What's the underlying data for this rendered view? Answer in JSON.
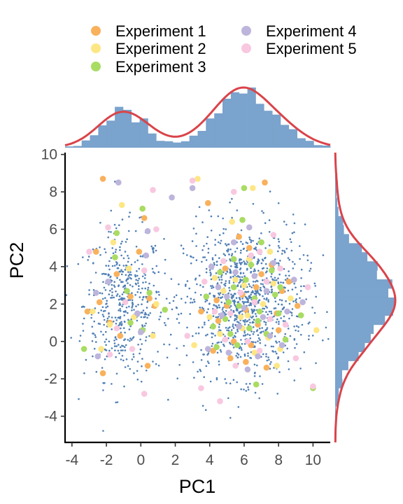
{
  "chart_data": {
    "type": "scatter",
    "title": "",
    "xlabel": "PC1",
    "ylabel": "PC2",
    "xlim": [
      -4.4,
      11.0
    ],
    "ylim": [
      -5.4,
      10.1
    ],
    "x_ticks": [
      -4,
      -2,
      0,
      2,
      4,
      6,
      8,
      10
    ],
    "y_ticks": [
      -4,
      -2,
      0,
      2,
      4,
      6,
      8,
      10
    ],
    "grid": false,
    "legend_position": "top",
    "background_points": {
      "color": "#4f7fb5",
      "clusters": [
        {
          "center": [
            -1.0,
            2.0
          ],
          "sd": [
            1.15,
            2.0
          ],
          "count": 480
        },
        {
          "center": [
            6.0,
            2.2
          ],
          "sd": [
            1.75,
            2.0
          ],
          "count": 1050
        }
      ]
    },
    "series": [
      {
        "name": "Experiment 1",
        "color": "#f9b15c",
        "points": [
          [
            -2.2,
            8.7
          ],
          [
            -3.1,
            1.6
          ],
          [
            -1.8,
            1.0
          ],
          [
            0.2,
            6.6
          ],
          [
            -0.6,
            2.4
          ],
          [
            -2.6,
            4.8
          ],
          [
            0.8,
            1.9
          ],
          [
            -1.2,
            0.3
          ],
          [
            -2.2,
            -1.7
          ],
          [
            0.4,
            -1.3
          ],
          [
            7.2,
            8.5
          ],
          [
            3.9,
            7.4
          ],
          [
            5.4,
            0.0
          ],
          [
            6.1,
            1.7
          ],
          [
            7.6,
            4.1
          ],
          [
            4.4,
            2.2
          ],
          [
            8.0,
            0.6
          ],
          [
            5.2,
            -0.9
          ],
          [
            6.7,
            2.9
          ],
          [
            7.9,
            1.5
          ],
          [
            4.9,
            3.9
          ],
          [
            6.4,
            -0.2
          ],
          [
            8.6,
            3.2
          ],
          [
            5.7,
            5.6
          ],
          [
            6.8,
            0.9
          ],
          [
            4.5,
            1.1
          ],
          [
            7.3,
            -1.4
          ],
          [
            5.9,
            2.5
          ],
          [
            8.2,
            2.7
          ],
          [
            6.3,
            5.0
          ],
          [
            4.2,
            -0.5
          ],
          [
            7.0,
            3.6
          ],
          [
            3.5,
            1.6
          ],
          [
            9.1,
            1.9
          ],
          [
            6.1,
            -1.1
          ],
          [
            -0.1,
            4.8
          ],
          [
            -1.4,
            3.6
          ],
          [
            0.5,
            2.3
          ],
          [
            -2.4,
            2.1
          ],
          [
            5.0,
            1.9
          ]
        ]
      },
      {
        "name": "Experiment 2",
        "color": "#fde785",
        "points": [
          [
            -1.1,
            7.3
          ],
          [
            -0.4,
            1.3
          ],
          [
            0.9,
            2.0
          ],
          [
            -2.3,
            -0.4
          ],
          [
            -1.6,
            5.3
          ],
          [
            3.3,
            8.7
          ],
          [
            5.3,
            6.4
          ],
          [
            7.4,
            0.2
          ],
          [
            4.8,
            2.7
          ],
          [
            6.2,
            1.4
          ],
          [
            10.2,
            0.6
          ],
          [
            8.7,
            2.3
          ],
          [
            5.5,
            3.3
          ],
          [
            7.1,
            2.0
          ],
          [
            6.6,
            -0.6
          ],
          [
            3.1,
            -0.2
          ],
          [
            6.3,
            4.4
          ],
          [
            4.0,
            1.3
          ],
          [
            7.7,
            3.1
          ],
          [
            5.9,
            0.7
          ],
          [
            8.1,
            -0.4
          ],
          [
            4.6,
            0.4
          ],
          [
            7.5,
            4.8
          ],
          [
            -1.8,
            0.9
          ],
          [
            -0.7,
            3.9
          ],
          [
            6.5,
            8.2
          ],
          [
            5.8,
            1.3
          ],
          [
            4.3,
            3.4
          ],
          [
            7.9,
            -1.3
          ],
          [
            6.0,
            3.0
          ],
          [
            -2.8,
            1.6
          ],
          [
            0.7,
            0.3
          ]
        ]
      },
      {
        "name": "Experiment 3",
        "color": "#a9dc62",
        "points": [
          [
            0.1,
            7.1
          ],
          [
            0.5,
            2.6
          ],
          [
            -0.6,
            1.0
          ],
          [
            -3.3,
            -0.4
          ],
          [
            -1.5,
            4.5
          ],
          [
            6.0,
            8.2
          ],
          [
            5.9,
            6.5
          ],
          [
            6.9,
            1.6
          ],
          [
            5.1,
            2.1
          ],
          [
            7.3,
            0.4
          ],
          [
            9.3,
            1.4
          ],
          [
            5.4,
            4.4
          ],
          [
            6.6,
            2.3
          ],
          [
            4.2,
            0.8
          ],
          [
            8.1,
            2.9
          ],
          [
            5.6,
            -0.2
          ],
          [
            10.0,
            -2.5
          ],
          [
            6.7,
            -2.3
          ],
          [
            7.6,
            3.8
          ],
          [
            4.9,
            1.2
          ],
          [
            6.1,
            3.3
          ],
          [
            8.4,
            0.1
          ],
          [
            3.8,
            2.4
          ],
          [
            5.7,
            1.9
          ],
          [
            7.0,
            5.3
          ],
          [
            6.3,
            0.7
          ],
          [
            4.6,
            3.7
          ],
          [
            8.0,
            1.5
          ],
          [
            1.4,
            1.7
          ],
          [
            -1.4,
            5.8
          ],
          [
            -0.8,
            2.7
          ],
          [
            0.1,
            0.6
          ],
          [
            5.4,
            2.9
          ],
          [
            6.4,
            4.1
          ],
          [
            7.8,
            2.5
          ],
          [
            4.4,
            -0.3
          ],
          [
            6.8,
            1.1
          ],
          [
            5.2,
            0.4
          ]
        ]
      },
      {
        "name": "Experiment 4",
        "color": "#bdb5db",
        "points": [
          [
            -1.3,
            8.5
          ],
          [
            0.3,
            4.6
          ],
          [
            -1.9,
            3.2
          ],
          [
            0.0,
            0.5
          ],
          [
            -2.5,
            -0.8
          ],
          [
            1.8,
            7.7
          ],
          [
            3.0,
            8.2
          ],
          [
            5.4,
            5.3
          ],
          [
            7.7,
            4.2
          ],
          [
            6.0,
            1.8
          ],
          [
            4.5,
            2.9
          ],
          [
            8.5,
            1.6
          ],
          [
            6.8,
            -0.8
          ],
          [
            5.1,
            -0.6
          ],
          [
            7.3,
            2.7
          ],
          [
            4.7,
            1.4
          ],
          [
            8.9,
            3.3
          ],
          [
            6.3,
            6.1
          ],
          [
            5.7,
            0.8
          ],
          [
            7.5,
            0.3
          ],
          [
            4.1,
            4.0
          ],
          [
            6.6,
            3.5
          ],
          [
            9.4,
            2.1
          ],
          [
            5.0,
            2.4
          ],
          [
            -0.2,
            1.5
          ],
          [
            -2.6,
            2.6
          ],
          [
            0.4,
            5.9
          ],
          [
            7.1,
            1.3
          ],
          [
            3.9,
            -0.4
          ],
          [
            6.2,
            -1.5
          ],
          [
            8.2,
            -0.2
          ],
          [
            5.5,
            3.7
          ]
        ]
      },
      {
        "name": "Experiment 5",
        "color": "#f8c8e0",
        "points": [
          [
            0.7,
            8.1
          ],
          [
            -1.9,
            6.1
          ],
          [
            -0.9,
            2.1
          ],
          [
            0.2,
            3.8
          ],
          [
            -3.0,
            4.8
          ],
          [
            -0.5,
            -0.4
          ],
          [
            -1.8,
            -0.7
          ],
          [
            0.2,
            -2.8
          ],
          [
            -1.4,
            0.7
          ],
          [
            0.9,
            6.0
          ],
          [
            3.0,
            8.6
          ],
          [
            5.4,
            8.0
          ],
          [
            7.7,
            5.7
          ],
          [
            8.1,
            3.9
          ],
          [
            6.4,
            4.6
          ],
          [
            5.2,
            1.5
          ],
          [
            9.0,
            -0.9
          ],
          [
            4.6,
            -3.2
          ],
          [
            3.5,
            -2.5
          ],
          [
            2.7,
            0.3
          ],
          [
            6.9,
            -0.5
          ],
          [
            7.5,
            1.2
          ],
          [
            5.8,
            2.6
          ],
          [
            4.3,
            1.6
          ],
          [
            9.7,
            2.9
          ],
          [
            10.0,
            -2.4
          ],
          [
            6.2,
            0.0
          ],
          [
            4.8,
            4.3
          ],
          [
            7.3,
            3.2
          ],
          [
            5.5,
            -1.3
          ],
          [
            8.4,
            0.9
          ],
          [
            6.6,
            2.1
          ],
          [
            3.7,
            3.2
          ],
          [
            6.9,
            4.8
          ],
          [
            4.9,
            0.1
          ]
        ]
      }
    ],
    "marginal_x": {
      "type": "histogram+density",
      "bar_color": "#7aa3cd",
      "curve_color": "#d9444a"
    },
    "marginal_y": {
      "type": "histogram+density",
      "bar_color": "#7aa3cd",
      "curve_color": "#d9444a"
    }
  }
}
